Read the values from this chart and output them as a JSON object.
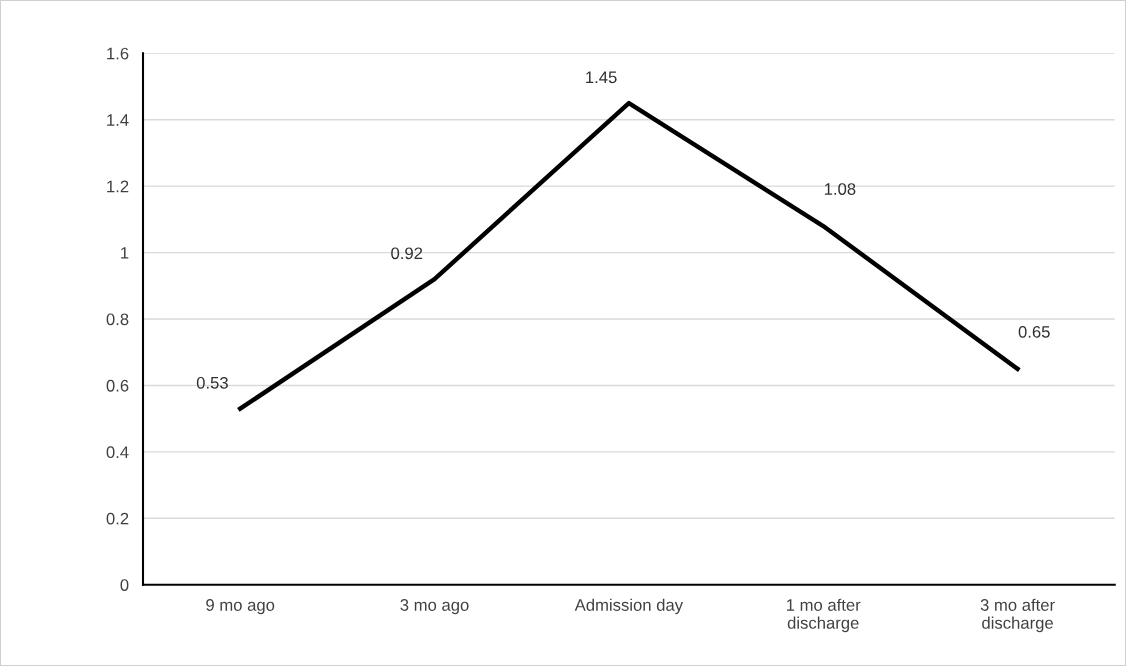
{
  "chart_data": {
    "type": "line",
    "categories": [
      "9 mo ago",
      "3 mo ago",
      "Admission day",
      "1 mo after\ndischarge",
      "3 mo after\ndischarge"
    ],
    "values": [
      0.53,
      0.92,
      1.45,
      1.08,
      0.65
    ],
    "color": "#000000",
    "ylim": [
      0,
      1.6
    ],
    "yticks": [
      0,
      0.2,
      0.4,
      0.6,
      0.8,
      1,
      1.2,
      1.4,
      1.6
    ],
    "grid": "y",
    "data_labels": true,
    "marker": "none",
    "line_style": "solid"
  }
}
